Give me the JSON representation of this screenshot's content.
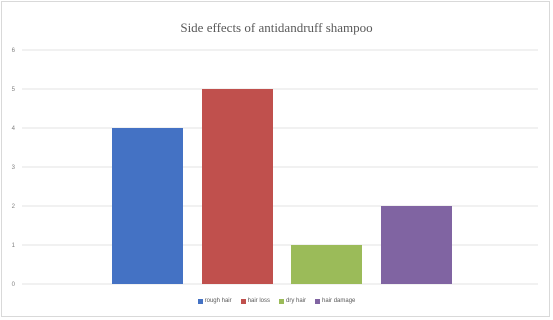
{
  "chart_data": {
    "type": "bar",
    "title": "Side effects of antidandruff shampoo",
    "categories": [
      "rough hair",
      "hair loss",
      "dry hair",
      "hair damage"
    ],
    "values": [
      4,
      5,
      1,
      2
    ],
    "colors": [
      "#4472c4",
      "#c0504d",
      "#9bbb59",
      "#8064a2"
    ],
    "ylim": [
      0,
      6
    ],
    "yticks": [
      "0",
      "1",
      "2",
      "3",
      "4",
      "5",
      "6"
    ],
    "grid": true,
    "legend_position": "bottom"
  }
}
